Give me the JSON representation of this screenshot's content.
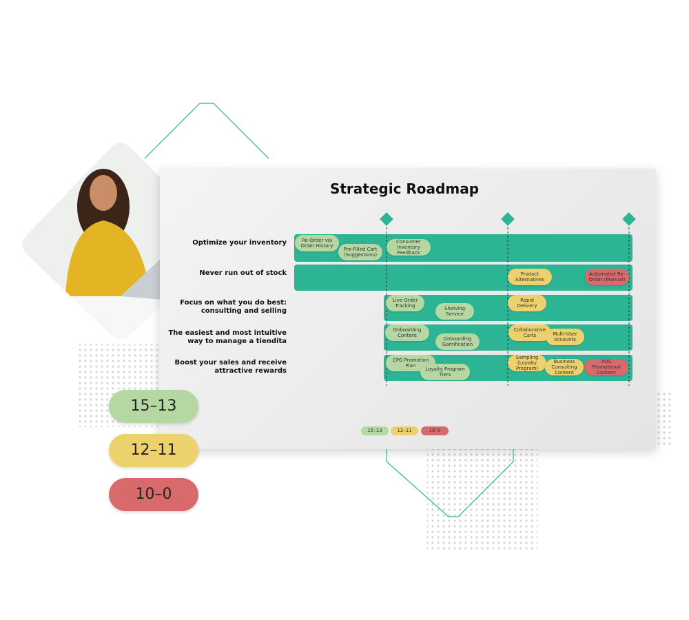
{
  "title": "Strategic Roadmap",
  "colors": {
    "15–13": "#b5d8a2",
    "12–11": "#ecd16c",
    "10–0": "#d96a6c"
  },
  "rows": [
    {
      "label": "Optimize your inventory",
      "items": [
        {
          "label": "Re-Order via Order History",
          "level": "15–13"
        },
        {
          "label": "Pre-Filled Cart (Suggestions)",
          "level": "15–13"
        },
        {
          "label": "Consumer Inventory Feedback",
          "level": "15–13"
        }
      ]
    },
    {
      "label": "Never run out of stock",
      "items": [
        {
          "label": "Product Alternatives",
          "level": "12–11"
        },
        {
          "label": "Automated Re-Order (Manual)",
          "level": "10–0"
        }
      ]
    },
    {
      "label": "Focus on what you do best: consulting and selling",
      "items": [
        {
          "label": "Live Order Tracking",
          "level": "15–13"
        },
        {
          "label": "Shelving Service",
          "level": "15–13"
        },
        {
          "label": "Rapid Delivery",
          "level": "12–11"
        }
      ]
    },
    {
      "label": "The easiest and most intuitive way to manage a tiendita",
      "items": [
        {
          "label": "Onboarding Content",
          "level": "15–13"
        },
        {
          "label": "Onboarding Gamification",
          "level": "15–13"
        },
        {
          "label": "Collaborative Carts",
          "level": "12–11"
        },
        {
          "label": "Multi-User Accounts",
          "level": "12–11"
        }
      ]
    },
    {
      "label": "Boost your sales and receive attractive rewards",
      "items": [
        {
          "label": "CPG Promotion Plan",
          "level": "15–13"
        },
        {
          "label": "Loyalty Program Tiers",
          "level": "15–13"
        },
        {
          "label": "Sampling (Loyalty Program)",
          "level": "12–11"
        },
        {
          "label": "Business Consulting Content",
          "level": "12–11"
        },
        {
          "label": "POS Promotional Content",
          "level": "10–0"
        }
      ]
    }
  ],
  "legend": [
    "15–13",
    "12–11",
    "10–0"
  ],
  "badges": [
    "15–13",
    "12–11",
    "10–0"
  ]
}
